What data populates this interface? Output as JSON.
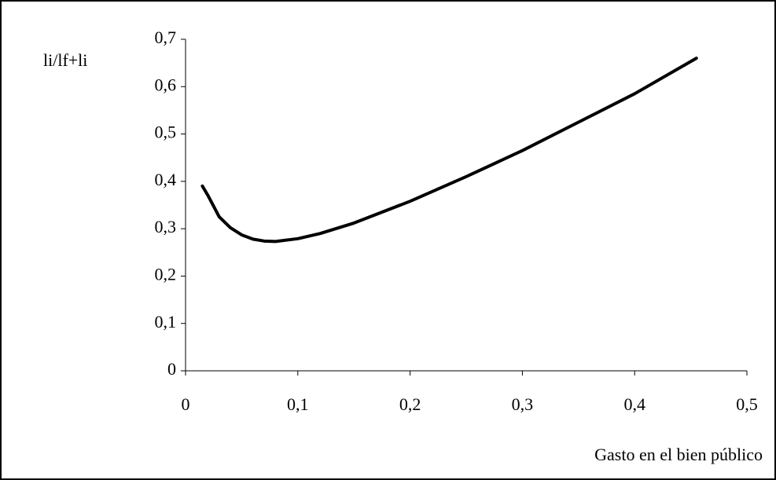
{
  "chart_data": {
    "type": "line",
    "y_label": "li/lf+li",
    "x_label": "Gasto en el bien público",
    "series": [
      {
        "color": "#000000",
        "x": [
          0.015,
          0.02,
          0.03,
          0.04,
          0.05,
          0.06,
          0.07,
          0.08,
          0.1,
          0.12,
          0.15,
          0.2,
          0.25,
          0.3,
          0.35,
          0.4,
          0.455
        ],
        "values": [
          0.39,
          0.37,
          0.325,
          0.302,
          0.287,
          0.278,
          0.274,
          0.273,
          0.279,
          0.29,
          0.312,
          0.358,
          0.41,
          0.465,
          0.525,
          0.585,
          0.66
        ]
      }
    ],
    "xlim": [
      0,
      0.5
    ],
    "xticks": [
      0,
      {
        "value": 0.1,
        "label": "0,1"
      },
      {
        "value": 0.2,
        "label": "0,2"
      },
      {
        "value": 0.3,
        "label": "0,3"
      },
      {
        "value": 0.4,
        "label": "0,4"
      },
      {
        "value": 0.5,
        "label": "0,5"
      }
    ],
    "ylim": [
      0,
      0.7
    ],
    "yticks": [
      0,
      {
        "value": 0.1,
        "label": "0,1"
      },
      {
        "value": 0.2,
        "label": "0,2"
      },
      {
        "value": 0.3,
        "label": "0,3"
      },
      {
        "value": 0.4,
        "label": "0,4"
      },
      {
        "value": 0.5,
        "label": "0,5"
      },
      {
        "value": 0.6,
        "label": "0,6"
      },
      {
        "value": 0.7,
        "label": "0,7"
      }
    ],
    "grid": false
  }
}
